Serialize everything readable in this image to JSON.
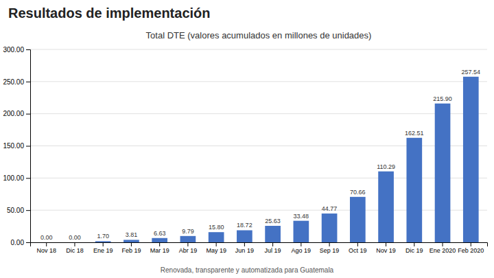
{
  "chart_data": {
    "type": "bar",
    "title": "Total DTE  (valores acumulados en millones de unidades)",
    "annotations": [
      "Resultados de implementación",
      "Renovada, transparente y automatizada para Guatemala"
    ],
    "categories": [
      "Nov 18",
      "Dic 18",
      "Ene 19",
      "Feb 19",
      "Mar 19",
      "Abr 19",
      "May 19",
      "Jun 19",
      "Jul 19",
      "Ago 19",
      "Sep 19",
      "Oct 19",
      "Nov 19",
      "Dic 19",
      "Ene 2020",
      "Feb 2020"
    ],
    "values": [
      0.0,
      0.0,
      1.7,
      3.81,
      6.63,
      9.79,
      15.8,
      18.72,
      25.63,
      33.48,
      44.77,
      70.66,
      110.29,
      162.51,
      215.9,
      257.54
    ],
    "value_labels": [
      "0.00",
      "0.00",
      "1.70",
      "3.81",
      "6.63",
      "9.79",
      "15.80",
      "18.72",
      "25.63",
      "33.48",
      "44.77",
      "70.66",
      "110.29",
      "162.51",
      "215.90",
      "257.54"
    ],
    "data_labels": true,
    "color": "#4472C4",
    "ylim": [
      0,
      300
    ],
    "yticks": [
      {
        "value": 0,
        "label": "0.00"
      },
      {
        "value": 50,
        "label": "50.00"
      },
      {
        "value": 100,
        "label": "100.00"
      },
      {
        "value": 150,
        "label": "150.00"
      },
      {
        "value": 200,
        "label": "200.00"
      },
      {
        "value": 250,
        "label": "250.00"
      },
      {
        "value": 300,
        "label": "300.00"
      }
    ],
    "grid": true
  }
}
